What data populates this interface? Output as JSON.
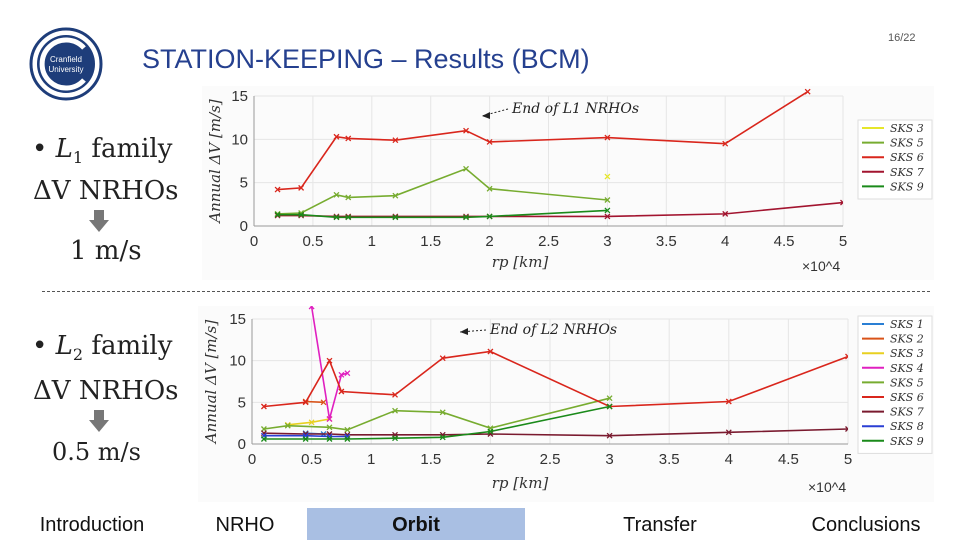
{
  "page_number": "16/22",
  "title": "STATION-KEEPING – Results (BCM)",
  "logo_text": [
    "Cranfield",
    "University"
  ],
  "section1": {
    "bullet": "•",
    "family_sym": "L",
    "family_sub": "1",
    "family_word": "family",
    "dv_label": "ΔV NRHOs",
    "result": "1 m/s"
  },
  "section2": {
    "bullet": "•",
    "family_sym": "L",
    "family_sub": "2",
    "family_word": "family",
    "dv_label": "ΔV NRHOs",
    "result": "0.5 m/s"
  },
  "nav": {
    "items": [
      "Introduction",
      "NRHO",
      "Orbit",
      "Transfer",
      "Conclusions"
    ],
    "active_index": 2,
    "active_color": "#a9bfe3"
  },
  "chart_data": [
    {
      "type": "line",
      "annotation": "End of L1 NRHOs",
      "xlabel": "rp [km]",
      "ylabel": "Annual ΔV [m/s]",
      "x_multiplier": "×10^4",
      "xlim": [
        0,
        5
      ],
      "ylim": [
        0,
        15
      ],
      "x_ticks": [
        "0",
        "0.5",
        "1",
        "1.5",
        "2",
        "2.5",
        "3",
        "3.5",
        "4",
        "4.5",
        "5"
      ],
      "y_ticks": [
        "0",
        "5",
        "10",
        "15"
      ],
      "series": [
        {
          "name": "SKS 3",
          "color": "#e6e62a",
          "x": [
            3.0
          ],
          "y": [
            5.7
          ]
        },
        {
          "name": "SKS 5",
          "color": "#77ac30",
          "x": [
            0.2,
            0.4,
            0.7,
            0.8,
            1.2,
            1.8,
            2.0,
            3.0
          ],
          "y": [
            1.4,
            1.5,
            3.6,
            3.3,
            3.5,
            6.6,
            4.3,
            3.0
          ]
        },
        {
          "name": "SKS 6",
          "color": "#d9261c",
          "x": [
            0.2,
            0.4,
            0.7,
            0.8,
            1.2,
            1.8,
            2.0,
            3.0,
            4.0,
            4.7
          ],
          "y": [
            4.2,
            4.4,
            10.3,
            10.1,
            9.9,
            11.0,
            9.7,
            10.2,
            9.5,
            15.5
          ]
        },
        {
          "name": "SKS 7",
          "color": "#a2142f",
          "x": [
            0.2,
            0.4,
            0.7,
            0.8,
            1.2,
            1.8,
            2.0,
            3.0,
            4.0,
            5.0
          ],
          "y": [
            1.2,
            1.2,
            1.1,
            1.1,
            1.1,
            1.1,
            1.1,
            1.1,
            1.4,
            2.7
          ]
        },
        {
          "name": "SKS 9",
          "color": "#1a8a1a",
          "x": [
            0.2,
            0.4,
            0.7,
            0.8,
            1.2,
            1.8,
            2.0,
            3.0
          ],
          "y": [
            1.3,
            1.3,
            1.0,
            1.0,
            1.0,
            1.0,
            1.1,
            1.8
          ]
        }
      ]
    },
    {
      "type": "line",
      "annotation": "End of L2 NRHOs",
      "xlabel": "rp [km]",
      "ylabel": "Annual ΔV [m/s]",
      "x_multiplier": "×10^4",
      "xlim": [
        0,
        5
      ],
      "ylim": [
        0,
        15
      ],
      "x_ticks": [
        "0",
        "0.5",
        "1",
        "1.5",
        "2",
        "2.5",
        "3",
        "3.5",
        "4",
        "4.5",
        "5"
      ],
      "y_ticks": [
        "0",
        "5",
        "10",
        "15"
      ],
      "series": [
        {
          "name": "SKS 1",
          "color": "#2a7fd4",
          "x": [
            0.45,
            0.6
          ],
          "y": [
            1.3,
            1.2
          ]
        },
        {
          "name": "SKS 2",
          "color": "#d95319",
          "x": [
            0.45,
            0.6
          ],
          "y": [
            5.1,
            5.0
          ]
        },
        {
          "name": "SKS 3",
          "color": "#e8d020",
          "x": [
            0.3,
            0.5,
            0.65
          ],
          "y": [
            2.3,
            2.6,
            3.0
          ]
        },
        {
          "name": "SKS 4",
          "color": "#e020c0",
          "x": [
            0.5,
            0.65,
            0.75,
            0.8
          ],
          "y": [
            16.5,
            3.0,
            8.3,
            8.5
          ]
        },
        {
          "name": "SKS 5",
          "color": "#77ac30",
          "x": [
            0.1,
            0.3,
            0.65,
            0.8,
            1.2,
            1.6,
            2.0,
            3.0
          ],
          "y": [
            1.8,
            2.2,
            2.0,
            1.7,
            4.0,
            3.8,
            1.9,
            5.5
          ]
        },
        {
          "name": "SKS 6",
          "color": "#d9261c",
          "x": [
            0.1,
            0.45,
            0.65,
            0.75,
            1.2,
            1.6,
            2.0,
            3.0,
            4.0,
            5.0
          ],
          "y": [
            4.5,
            5.0,
            10.0,
            6.3,
            5.9,
            10.3,
            11.1,
            4.5,
            5.1,
            10.5
          ]
        },
        {
          "name": "SKS 7",
          "color": "#7a1a2f",
          "x": [
            0.1,
            0.45,
            0.65,
            0.8,
            1.2,
            1.6,
            2.0,
            3.0,
            4.0,
            5.0
          ],
          "y": [
            1.3,
            1.2,
            1.2,
            1.1,
            1.1,
            1.1,
            1.2,
            1.0,
            1.4,
            1.8
          ]
        },
        {
          "name": "SKS 8",
          "color": "#2a3fd4",
          "x": [
            0.1,
            0.45,
            0.65,
            0.8
          ],
          "y": [
            1.0,
            1.0,
            0.9,
            0.9
          ]
        },
        {
          "name": "SKS 9",
          "color": "#1a8a1a",
          "x": [
            0.1,
            0.45,
            0.65,
            0.8,
            1.2,
            1.6,
            2.0,
            3.0
          ],
          "y": [
            0.6,
            0.6,
            0.6,
            0.6,
            0.7,
            0.8,
            1.5,
            4.5
          ]
        }
      ]
    }
  ]
}
